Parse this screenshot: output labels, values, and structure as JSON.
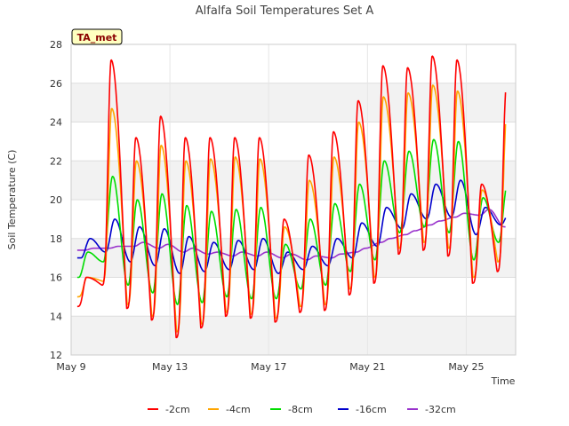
{
  "chart_data": {
    "type": "line",
    "title": "Alfalfa Soil Temperatures Set A",
    "xlabel": "Time",
    "ylabel": "Soil Temperature (C)",
    "site_tag": "TA_met",
    "xlim": [
      0,
      18
    ],
    "ylim": [
      12,
      28
    ],
    "x_ticks": [
      {
        "label": "May 9",
        "day": 0
      },
      {
        "label": "May 13",
        "day": 4
      },
      {
        "label": "May 17",
        "day": 8
      },
      {
        "label": "May 21",
        "day": 12
      },
      {
        "label": "May 25",
        "day": 16
      }
    ],
    "y_ticks": [
      12,
      14,
      16,
      18,
      20,
      22,
      24,
      26,
      28
    ],
    "legend_position": "bottom",
    "days": [
      0,
      1,
      2,
      3,
      4,
      5,
      6,
      7,
      8,
      9,
      10,
      11,
      12,
      13,
      14,
      15,
      16,
      17
    ],
    "series": [
      {
        "name": "-2cm",
        "color": "#ff0000",
        "daily_max": [
          16.0,
          27.2,
          23.2,
          24.3,
          23.2,
          23.2,
          23.2,
          23.2,
          19.0,
          22.3,
          23.5,
          25.1,
          26.9,
          26.8,
          27.4,
          27.2,
          20.8,
          25.8
        ],
        "daily_min": [
          14.5,
          15.6,
          14.4,
          13.8,
          12.9,
          13.4,
          14.0,
          13.9,
          13.7,
          14.2,
          14.3,
          15.1,
          15.7,
          17.2,
          17.4,
          17.1,
          15.7,
          16.3
        ]
      },
      {
        "name": "-4cm",
        "color": "#ffa500",
        "daily_max": [
          16.0,
          24.7,
          22.0,
          22.8,
          22.0,
          22.1,
          22.2,
          22.1,
          18.6,
          21.0,
          22.2,
          24.0,
          25.3,
          25.5,
          25.9,
          25.6,
          20.5,
          24.5
        ],
        "daily_min": [
          15.0,
          15.8,
          14.6,
          14.0,
          13.2,
          13.6,
          14.2,
          14.1,
          13.9,
          14.5,
          14.6,
          15.4,
          16.0,
          17.5,
          17.8,
          17.5,
          16.0,
          16.8
        ]
      },
      {
        "name": "-8cm",
        "color": "#00dd00",
        "daily_max": [
          17.3,
          21.2,
          20.0,
          20.3,
          19.7,
          19.4,
          19.5,
          19.6,
          17.7,
          19.0,
          19.8,
          20.8,
          22.0,
          22.5,
          23.1,
          23.0,
          20.1,
          20.9
        ],
        "daily_min": [
          16.0,
          16.8,
          15.6,
          15.2,
          14.6,
          14.7,
          15.0,
          14.9,
          14.9,
          15.4,
          15.6,
          16.3,
          16.9,
          18.3,
          18.6,
          18.3,
          16.9,
          17.8
        ]
      },
      {
        "name": "-16cm",
        "color": "#0000cc",
        "daily_max": [
          18.0,
          19.0,
          18.6,
          18.5,
          18.1,
          17.8,
          17.9,
          18.0,
          17.3,
          17.6,
          18.0,
          18.8,
          19.6,
          20.3,
          20.8,
          21.0,
          19.6,
          19.4
        ],
        "daily_min": [
          17.0,
          17.3,
          16.8,
          16.6,
          16.2,
          16.3,
          16.4,
          16.4,
          16.2,
          16.4,
          16.6,
          17.0,
          17.6,
          18.5,
          19.0,
          19.1,
          18.2,
          18.7
        ]
      },
      {
        "name": "-32cm",
        "color": "#9932cc",
        "daily_max": [
          17.5,
          17.6,
          17.8,
          17.7,
          17.5,
          17.3,
          17.3,
          17.3,
          17.2,
          17.1,
          17.2,
          17.5,
          18.0,
          18.4,
          18.9,
          19.3,
          19.5,
          18.8
        ],
        "daily_min": [
          17.4,
          17.5,
          17.6,
          17.5,
          17.3,
          17.2,
          17.1,
          17.1,
          17.0,
          16.9,
          17.0,
          17.3,
          17.8,
          18.2,
          18.7,
          19.1,
          19.2,
          18.6
        ]
      }
    ]
  }
}
